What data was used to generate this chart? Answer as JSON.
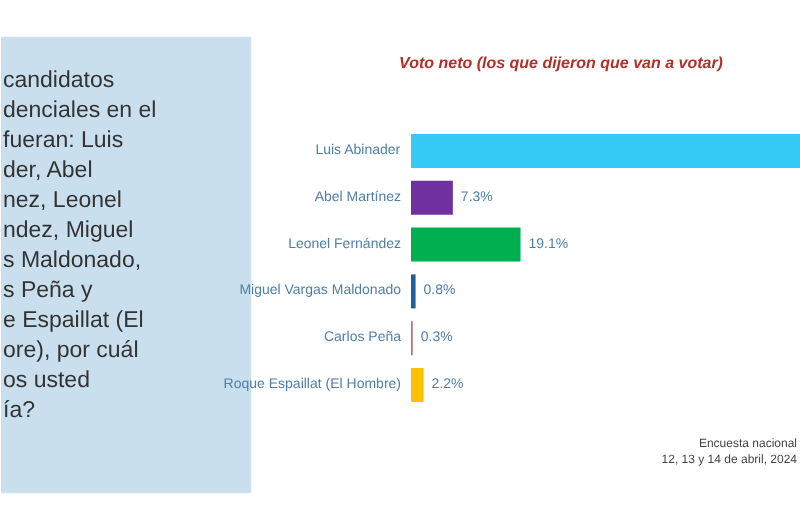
{
  "chart_data": {
    "type": "bar",
    "orientation": "horizontal",
    "title": "Voto neto (los que dijeron que van a votar)",
    "categories": [
      "Luis Abinader",
      "Abel Martínez",
      "Leonel Fernández",
      "Miguel Vargas Maldonado",
      "Carlos Peña",
      "Roque Espaillat (El Hombre)"
    ],
    "values": [
      68,
      7.3,
      19.1,
      0.8,
      0.3,
      2.2
    ],
    "colors": [
      "#36cbf7",
      "#7030a0",
      "#00b050",
      "#1f5f9a",
      "#b5716a",
      "#ffc000"
    ],
    "value_labels": [
      null,
      "7.3%",
      "19.1%",
      "0.8%",
      "0.3%",
      "2.2%"
    ],
    "xlim": [
      0,
      68
    ],
    "tick_labels": false,
    "grid": false,
    "annotations": [
      "candidatos\ndenciales en el\nfueran: Luis\nder, Abel\nnez, Leonel\nndez, Miguel\ns Maldonado,\ns Peña y\ne Espaillat (El\nore), por cuál\nos usted\nía?",
      "Encuesta nacional",
      "12, 13 y 14 de abril, 2024"
    ]
  }
}
